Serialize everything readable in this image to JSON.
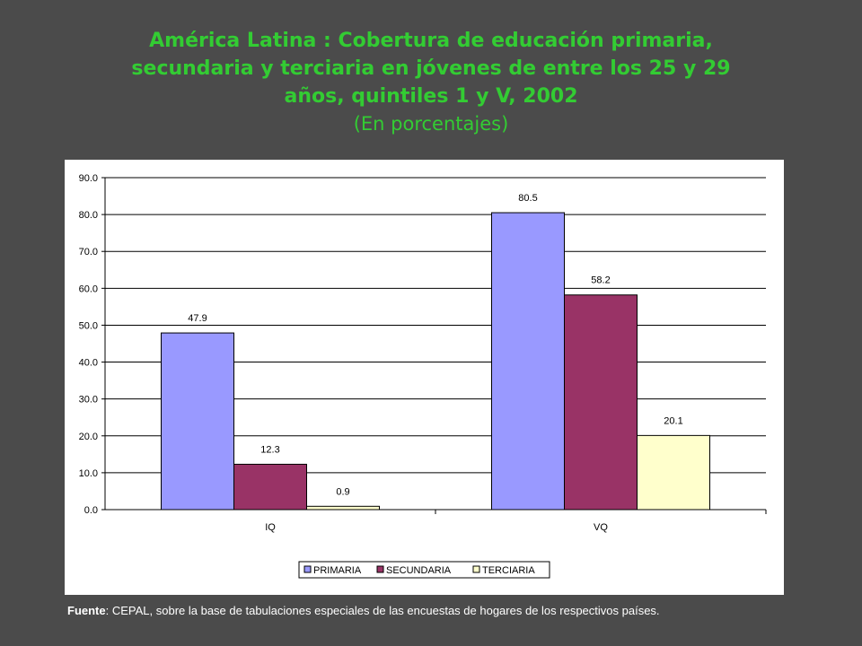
{
  "title": {
    "line1": "América Latina : Cobertura de educación  primaria,",
    "line2": "secundaria  y terciaria en jóvenes de entre los 25 y 29",
    "line3": "años, quintiles 1 y V, 2002",
    "subtitle": "(En porcentajes)"
  },
  "source": {
    "label": "Fuente",
    "text": ": CEPAL, sobre la base de tabulaciones especiales de las encuestas de hogares de los respectivos países."
  },
  "chart_data": {
    "type": "bar",
    "categories": [
      "IQ",
      "VQ"
    ],
    "series": [
      {
        "name": "PRIMARIA",
        "values": [
          47.9,
          80.5
        ],
        "color": "#9999ff"
      },
      {
        "name": "SECUNDARIA",
        "values": [
          12.3,
          58.2
        ],
        "color": "#993366"
      },
      {
        "name": "TERCIARIA",
        "values": [
          0.9,
          20.1
        ],
        "color": "#ffffcc"
      }
    ],
    "ylim": [
      0,
      90
    ],
    "yticks": [
      "90.0",
      "80.0",
      "70.0",
      "60.0",
      "50.0",
      "40.0",
      "30.0",
      "20.0",
      "10.0",
      "0.0"
    ],
    "grid": true,
    "legend": "bottom"
  }
}
